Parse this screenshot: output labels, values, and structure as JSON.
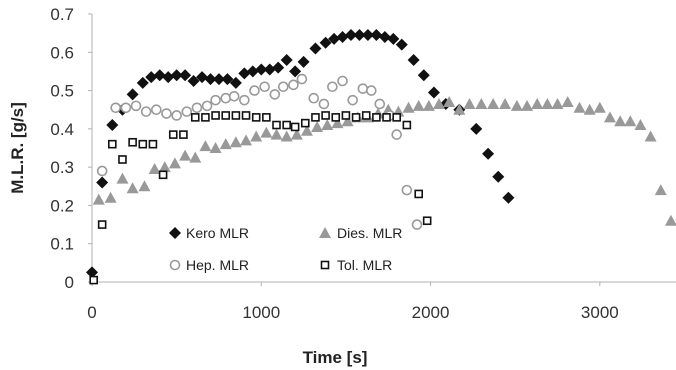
{
  "chart_data": {
    "type": "scatter",
    "xlabel": "Time [s]",
    "ylabel": "M.L.R.  [g/s]",
    "xlim": [
      0,
      3450
    ],
    "ylim": [
      0,
      0.7
    ],
    "xticks": [
      "0",
      "1000",
      "2000",
      "3000"
    ],
    "xtick_values": [
      0,
      1000,
      2000,
      3000
    ],
    "yticks": [
      "0",
      "0.1",
      "0.2",
      "0.3",
      "0.4",
      "0.5",
      "0.6",
      "0.7"
    ],
    "ytick_values": [
      0,
      0.1,
      0.2,
      0.3,
      0.4,
      0.5,
      0.6,
      0.7
    ],
    "grid": false,
    "legend_position": "bottom-center",
    "series": [
      {
        "name": "Kero MLR",
        "marker": "diamond",
        "color": "#111111",
        "points": [
          [
            0,
            0.025
          ],
          [
            60,
            0.26
          ],
          [
            120,
            0.41
          ],
          [
            180,
            0.45
          ],
          [
            240,
            0.49
          ],
          [
            300,
            0.52
          ],
          [
            350,
            0.535
          ],
          [
            400,
            0.54
          ],
          [
            450,
            0.535
          ],
          [
            500,
            0.54
          ],
          [
            550,
            0.54
          ],
          [
            600,
            0.525
          ],
          [
            650,
            0.535
          ],
          [
            700,
            0.53
          ],
          [
            750,
            0.53
          ],
          [
            800,
            0.53
          ],
          [
            850,
            0.52
          ],
          [
            900,
            0.545
          ],
          [
            950,
            0.55
          ],
          [
            1000,
            0.555
          ],
          [
            1050,
            0.555
          ],
          [
            1100,
            0.56
          ],
          [
            1150,
            0.58
          ],
          [
            1200,
            0.55
          ],
          [
            1250,
            0.575
          ],
          [
            1320,
            0.61
          ],
          [
            1380,
            0.625
          ],
          [
            1430,
            0.635
          ],
          [
            1480,
            0.64
          ],
          [
            1530,
            0.645
          ],
          [
            1580,
            0.645
          ],
          [
            1630,
            0.645
          ],
          [
            1680,
            0.645
          ],
          [
            1730,
            0.64
          ],
          [
            1780,
            0.635
          ],
          [
            1830,
            0.62
          ],
          [
            1900,
            0.58
          ],
          [
            1960,
            0.54
          ],
          [
            2020,
            0.495
          ],
          [
            2090,
            0.465
          ],
          [
            2170,
            0.45
          ],
          [
            2270,
            0.4
          ],
          [
            2340,
            0.335
          ],
          [
            2400,
            0.275
          ],
          [
            2460,
            0.22
          ]
        ]
      },
      {
        "name": "Dies. MLR",
        "marker": "triangle",
        "color": "#999999",
        "points": [
          [
            40,
            0.215
          ],
          [
            110,
            0.22
          ],
          [
            180,
            0.27
          ],
          [
            240,
            0.245
          ],
          [
            310,
            0.25
          ],
          [
            370,
            0.295
          ],
          [
            430,
            0.3
          ],
          [
            490,
            0.31
          ],
          [
            550,
            0.33
          ],
          [
            610,
            0.325
          ],
          [
            670,
            0.355
          ],
          [
            730,
            0.35
          ],
          [
            790,
            0.36
          ],
          [
            850,
            0.365
          ],
          [
            910,
            0.37
          ],
          [
            970,
            0.38
          ],
          [
            1030,
            0.39
          ],
          [
            1090,
            0.385
          ],
          [
            1150,
            0.38
          ],
          [
            1210,
            0.385
          ],
          [
            1270,
            0.395
          ],
          [
            1330,
            0.405
          ],
          [
            1390,
            0.41
          ],
          [
            1450,
            0.415
          ],
          [
            1510,
            0.42
          ],
          [
            1570,
            0.43
          ],
          [
            1630,
            0.43
          ],
          [
            1690,
            0.44
          ],
          [
            1750,
            0.45
          ],
          [
            1810,
            0.445
          ],
          [
            1870,
            0.455
          ],
          [
            1930,
            0.46
          ],
          [
            1990,
            0.46
          ],
          [
            2050,
            0.465
          ],
          [
            2110,
            0.47
          ],
          [
            2170,
            0.45
          ],
          [
            2230,
            0.465
          ],
          [
            2300,
            0.465
          ],
          [
            2370,
            0.465
          ],
          [
            2440,
            0.465
          ],
          [
            2510,
            0.46
          ],
          [
            2570,
            0.46
          ],
          [
            2630,
            0.465
          ],
          [
            2690,
            0.465
          ],
          [
            2750,
            0.465
          ],
          [
            2810,
            0.47
          ],
          [
            2880,
            0.455
          ],
          [
            2940,
            0.45
          ],
          [
            3000,
            0.455
          ],
          [
            3060,
            0.43
          ],
          [
            3120,
            0.42
          ],
          [
            3180,
            0.42
          ],
          [
            3240,
            0.41
          ],
          [
            3300,
            0.38
          ],
          [
            3360,
            0.24
          ],
          [
            3420,
            0.16
          ]
        ]
      },
      {
        "name": "Hep. MLR",
        "marker": "circle",
        "color": "#999999",
        "points": [
          [
            60,
            0.29
          ],
          [
            140,
            0.455
          ],
          [
            200,
            0.455
          ],
          [
            260,
            0.46
          ],
          [
            320,
            0.445
          ],
          [
            380,
            0.45
          ],
          [
            440,
            0.44
          ],
          [
            500,
            0.435
          ],
          [
            560,
            0.445
          ],
          [
            620,
            0.455
          ],
          [
            680,
            0.46
          ],
          [
            730,
            0.475
          ],
          [
            790,
            0.48
          ],
          [
            840,
            0.485
          ],
          [
            900,
            0.475
          ],
          [
            960,
            0.5
          ],
          [
            1020,
            0.51
          ],
          [
            1080,
            0.49
          ],
          [
            1130,
            0.51
          ],
          [
            1190,
            0.515
          ],
          [
            1240,
            0.53
          ],
          [
            1310,
            0.48
          ],
          [
            1370,
            0.465
          ],
          [
            1420,
            0.51
          ],
          [
            1480,
            0.525
          ],
          [
            1540,
            0.475
          ],
          [
            1600,
            0.505
          ],
          [
            1650,
            0.5
          ],
          [
            1700,
            0.465
          ],
          [
            1760,
            0.435
          ],
          [
            1800,
            0.385
          ],
          [
            1860,
            0.24
          ],
          [
            1920,
            0.15
          ]
        ]
      },
      {
        "name": "Tol. MLR",
        "marker": "square",
        "color": "#111111",
        "points": [
          [
            10,
            0.005
          ],
          [
            60,
            0.15
          ],
          [
            120,
            0.36
          ],
          [
            180,
            0.32
          ],
          [
            240,
            0.365
          ],
          [
            300,
            0.36
          ],
          [
            360,
            0.36
          ],
          [
            420,
            0.28
          ],
          [
            480,
            0.385
          ],
          [
            540,
            0.385
          ],
          [
            610,
            0.43
          ],
          [
            670,
            0.43
          ],
          [
            730,
            0.435
          ],
          [
            790,
            0.435
          ],
          [
            850,
            0.435
          ],
          [
            910,
            0.435
          ],
          [
            970,
            0.43
          ],
          [
            1030,
            0.43
          ],
          [
            1090,
            0.41
          ],
          [
            1150,
            0.41
          ],
          [
            1200,
            0.405
          ],
          [
            1260,
            0.415
          ],
          [
            1320,
            0.43
          ],
          [
            1380,
            0.435
          ],
          [
            1440,
            0.43
          ],
          [
            1500,
            0.435
          ],
          [
            1560,
            0.43
          ],
          [
            1620,
            0.435
          ],
          [
            1680,
            0.43
          ],
          [
            1740,
            0.43
          ],
          [
            1800,
            0.43
          ],
          [
            1860,
            0.41
          ],
          [
            1930,
            0.23
          ],
          [
            1980,
            0.16
          ]
        ]
      }
    ]
  }
}
